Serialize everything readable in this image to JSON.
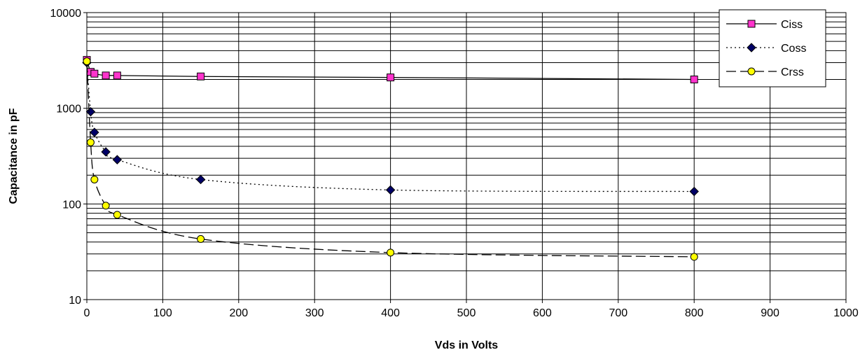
{
  "chart_data": {
    "type": "line",
    "title": "",
    "xlabel": "Vds in Volts",
    "ylabel": "Capacitance in pF",
    "xlim": [
      0,
      1000
    ],
    "ylim": [
      10,
      10000
    ],
    "yscale": "log",
    "grid": true,
    "legend_position": "top-right",
    "x_ticks": [
      "0",
      "100",
      "200",
      "300",
      "400",
      "500",
      "600",
      "700",
      "800",
      "900",
      "1000"
    ],
    "y_ticks": [
      "10",
      "100",
      "1000",
      "10000"
    ],
    "series": [
      {
        "name": "Ciss",
        "line_style": "solid",
        "marker": "square",
        "marker_color": "#ff33cc",
        "x": [
          0,
          5,
          10,
          25,
          40,
          150,
          400,
          800
        ],
        "y": [
          3200,
          2400,
          2300,
          2200,
          2200,
          2150,
          2100,
          2000
        ]
      },
      {
        "name": "Coss",
        "line_style": "dotted",
        "marker": "diamond",
        "marker_color": "#000066",
        "x": [
          0,
          5,
          10,
          25,
          40,
          150,
          400,
          800
        ],
        "y": [
          3000,
          920,
          560,
          350,
          290,
          180,
          140,
          135
        ]
      },
      {
        "name": "Crss",
        "line_style": "dashed",
        "marker": "circle",
        "marker_color": "#ffff00",
        "x": [
          0,
          5,
          10,
          25,
          40,
          150,
          400,
          800
        ],
        "y": [
          3100,
          440,
          180,
          96,
          77,
          43,
          31,
          28
        ]
      }
    ]
  }
}
